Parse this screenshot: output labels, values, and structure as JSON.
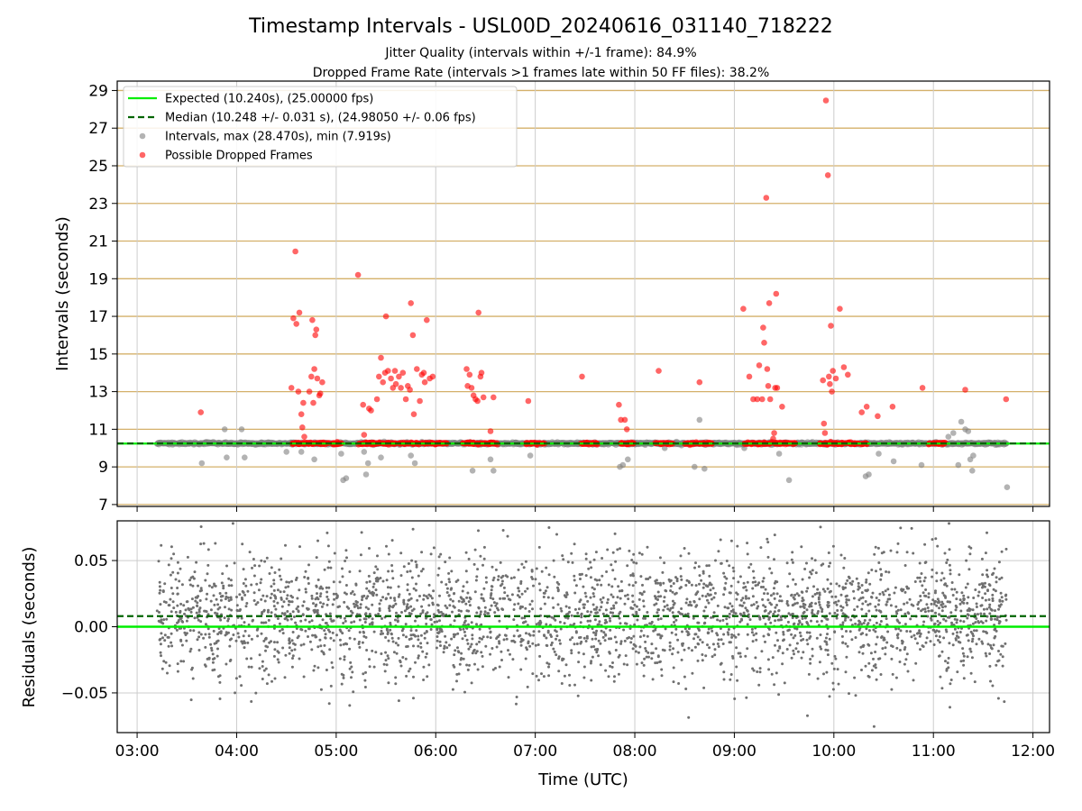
{
  "chart_data": [
    {
      "type": "scatter",
      "title": "Timestamp Intervals - USL00D_20240616_031140_718222",
      "subtitle_1": "Jitter Quality (intervals within +/-1 frame): 84.9%",
      "subtitle_2": "Dropped Frame Rate (intervals >1 frames late within 50 FF files): 38.2%",
      "ylabel": "Intervals (seconds)",
      "ylim": [
        6.9,
        29.5
      ],
      "yticks": [
        "29",
        "27",
        "25",
        "23",
        "21",
        "19",
        "17",
        "15",
        "13",
        "11",
        "9",
        "7"
      ],
      "ytick_values": [
        29,
        27,
        25,
        23,
        21,
        19,
        17,
        15,
        13,
        11,
        9,
        7
      ],
      "grid": true,
      "legend_position": "upper-left",
      "legend": {
        "expected": "Expected (10.240s), (25.00000 fps)",
        "median": "Median (10.248 +/- 0.031 s), (24.98050 +/- 0.06 fps)",
        "intervals": "Intervals, max (28.470s), min (7.919s)",
        "dropped": "Possible Dropped Frames"
      },
      "expected_value": 10.24,
      "median_value": 10.248,
      "dropped_points": [
        [
          3.64,
          11.9
        ],
        [
          4.55,
          13.2
        ],
        [
          4.57,
          16.9
        ],
        [
          4.59,
          20.45
        ],
        [
          4.6,
          16.6
        ],
        [
          4.62,
          13.0
        ],
        [
          4.63,
          17.2
        ],
        [
          4.65,
          11.8
        ],
        [
          4.66,
          11.1
        ],
        [
          4.67,
          12.4
        ],
        [
          4.68,
          10.6
        ],
        [
          4.73,
          13.0
        ],
        [
          4.75,
          13.8
        ],
        [
          4.76,
          16.8
        ],
        [
          4.77,
          12.4
        ],
        [
          4.78,
          14.2
        ],
        [
          4.79,
          16.0
        ],
        [
          4.8,
          16.3
        ],
        [
          4.81,
          13.7
        ],
        [
          4.83,
          12.8
        ],
        [
          4.84,
          12.9
        ],
        [
          4.86,
          13.5
        ],
        [
          5.22,
          19.2
        ],
        [
          5.27,
          12.3
        ],
        [
          5.28,
          10.7
        ],
        [
          5.33,
          12.1
        ],
        [
          5.35,
          12.0
        ],
        [
          5.41,
          12.6
        ],
        [
          5.43,
          13.8
        ],
        [
          5.45,
          14.8
        ],
        [
          5.47,
          13.5
        ],
        [
          5.49,
          14.0
        ],
        [
          5.5,
          17.0
        ],
        [
          5.52,
          14.1
        ],
        [
          5.55,
          13.7
        ],
        [
          5.57,
          13.2
        ],
        [
          5.59,
          14.1
        ],
        [
          5.6,
          13.4
        ],
        [
          5.63,
          13.8
        ],
        [
          5.65,
          13.2
        ],
        [
          5.67,
          14.0
        ],
        [
          5.7,
          12.6
        ],
        [
          5.72,
          13.3
        ],
        [
          5.74,
          13.1
        ],
        [
          5.75,
          17.7
        ],
        [
          5.77,
          16.0
        ],
        [
          5.78,
          11.8
        ],
        [
          5.81,
          14.2
        ],
        [
          5.84,
          12.5
        ],
        [
          5.86,
          13.9
        ],
        [
          5.88,
          14.0
        ],
        [
          5.89,
          13.5
        ],
        [
          5.91,
          16.8
        ],
        [
          5.94,
          13.7
        ],
        [
          5.97,
          13.8
        ],
        [
          6.31,
          14.2
        ],
        [
          6.32,
          13.3
        ],
        [
          6.34,
          13.9
        ],
        [
          6.36,
          13.2
        ],
        [
          6.38,
          12.8
        ],
        [
          6.4,
          12.6
        ],
        [
          6.42,
          12.5
        ],
        [
          6.43,
          17.2
        ],
        [
          6.45,
          13.8
        ],
        [
          6.46,
          14.0
        ],
        [
          6.48,
          12.7
        ],
        [
          6.55,
          10.9
        ],
        [
          6.58,
          12.7
        ],
        [
          6.93,
          12.5
        ],
        [
          7.47,
          13.8
        ],
        [
          7.84,
          12.3
        ],
        [
          7.86,
          11.5
        ],
        [
          7.9,
          11.5
        ],
        [
          7.92,
          11.0
        ],
        [
          8.24,
          14.1
        ],
        [
          8.65,
          13.5
        ],
        [
          9.09,
          17.4
        ],
        [
          9.15,
          13.8
        ],
        [
          9.19,
          12.6
        ],
        [
          9.23,
          12.6
        ],
        [
          9.25,
          14.4
        ],
        [
          9.28,
          12.6
        ],
        [
          9.29,
          16.4
        ],
        [
          9.3,
          15.6
        ],
        [
          9.32,
          23.3
        ],
        [
          9.33,
          14.2
        ],
        [
          9.34,
          13.3
        ],
        [
          9.35,
          17.7
        ],
        [
          9.36,
          12.6
        ],
        [
          9.39,
          10.5
        ],
        [
          9.4,
          10.8
        ],
        [
          9.41,
          13.2
        ],
        [
          9.42,
          18.2
        ],
        [
          9.43,
          13.2
        ],
        [
          9.48,
          12.2
        ],
        [
          9.89,
          13.6
        ],
        [
          9.9,
          11.3
        ],
        [
          9.91,
          10.8
        ],
        [
          9.92,
          28.47
        ],
        [
          9.94,
          24.5
        ],
        [
          9.95,
          13.8
        ],
        [
          9.96,
          13.4
        ],
        [
          9.97,
          16.5
        ],
        [
          9.98,
          13.0
        ],
        [
          9.99,
          14.1
        ],
        [
          10.02,
          13.7
        ],
        [
          10.06,
          17.4
        ],
        [
          10.1,
          14.3
        ],
        [
          10.14,
          13.9
        ],
        [
          10.28,
          11.9
        ],
        [
          10.33,
          12.2
        ],
        [
          10.44,
          11.7
        ],
        [
          10.59,
          12.2
        ],
        [
          10.89,
          13.2
        ],
        [
          11.32,
          13.1
        ],
        [
          11.73,
          12.6
        ]
      ],
      "gray_outliers": [
        [
          3.65,
          9.2
        ],
        [
          3.88,
          11.0
        ],
        [
          3.9,
          9.5
        ],
        [
          4.05,
          11.0
        ],
        [
          4.08,
          9.5
        ],
        [
          4.5,
          9.8
        ],
        [
          4.65,
          9.8
        ],
        [
          4.78,
          9.4
        ],
        [
          5.05,
          9.7
        ],
        [
          5.07,
          8.3
        ],
        [
          5.1,
          8.4
        ],
        [
          5.28,
          9.8
        ],
        [
          5.3,
          8.6
        ],
        [
          5.32,
          9.2
        ],
        [
          5.45,
          9.5
        ],
        [
          5.75,
          9.6
        ],
        [
          5.79,
          9.2
        ],
        [
          6.37,
          8.8
        ],
        [
          6.55,
          9.4
        ],
        [
          6.58,
          8.8
        ],
        [
          6.95,
          9.6
        ],
        [
          7.85,
          9.0
        ],
        [
          7.88,
          9.1
        ],
        [
          7.93,
          9.4
        ],
        [
          8.3,
          10.0
        ],
        [
          8.6,
          9.0
        ],
        [
          8.65,
          11.5
        ],
        [
          8.7,
          8.9
        ],
        [
          9.1,
          10.0
        ],
        [
          9.35,
          10.2
        ],
        [
          9.45,
          9.7
        ],
        [
          9.55,
          8.3
        ],
        [
          10.32,
          8.5
        ],
        [
          10.35,
          8.6
        ],
        [
          10.45,
          9.7
        ],
        [
          10.6,
          9.3
        ],
        [
          10.88,
          9.1
        ],
        [
          11.15,
          10.6
        ],
        [
          11.2,
          10.8
        ],
        [
          11.25,
          9.1
        ],
        [
          11.28,
          11.4
        ],
        [
          11.32,
          11.0
        ],
        [
          11.35,
          10.9
        ],
        [
          11.37,
          9.4
        ],
        [
          11.39,
          8.8
        ],
        [
          11.4,
          9.6
        ],
        [
          11.74,
          7.92
        ]
      ]
    },
    {
      "type": "scatter",
      "ylabel": "Residuals (seconds)",
      "xlabel": "Time (UTC)",
      "ylim": [
        -0.08,
        0.08
      ],
      "yticks": [
        "0.05",
        "0.00",
        "−0.05"
      ],
      "ytick_values": [
        0.05,
        0.0,
        -0.05
      ],
      "xlim": [
        "02:48",
        "12:10"
      ],
      "xticks": [
        "03:00",
        "04:00",
        "05:00",
        "06:00",
        "07:00",
        "08:00",
        "09:00",
        "10:00",
        "11:00",
        "12:00"
      ],
      "xtick_values": [
        3,
        4,
        5,
        6,
        7,
        8,
        9,
        10,
        11,
        12
      ],
      "x_start": "03:12",
      "x_end": "11:44",
      "expected_value": 0.0,
      "median_value": 0.008,
      "residual_spread_sd": 0.024,
      "residual_count": 3000,
      "grid": true
    }
  ],
  "colors": {
    "expected_line": "#00ee00",
    "median_line": "#006400",
    "intervals": "#808080",
    "dropped": "#ff0000",
    "hgrid_top": "#d4b06a",
    "grid": "#cccccc"
  }
}
